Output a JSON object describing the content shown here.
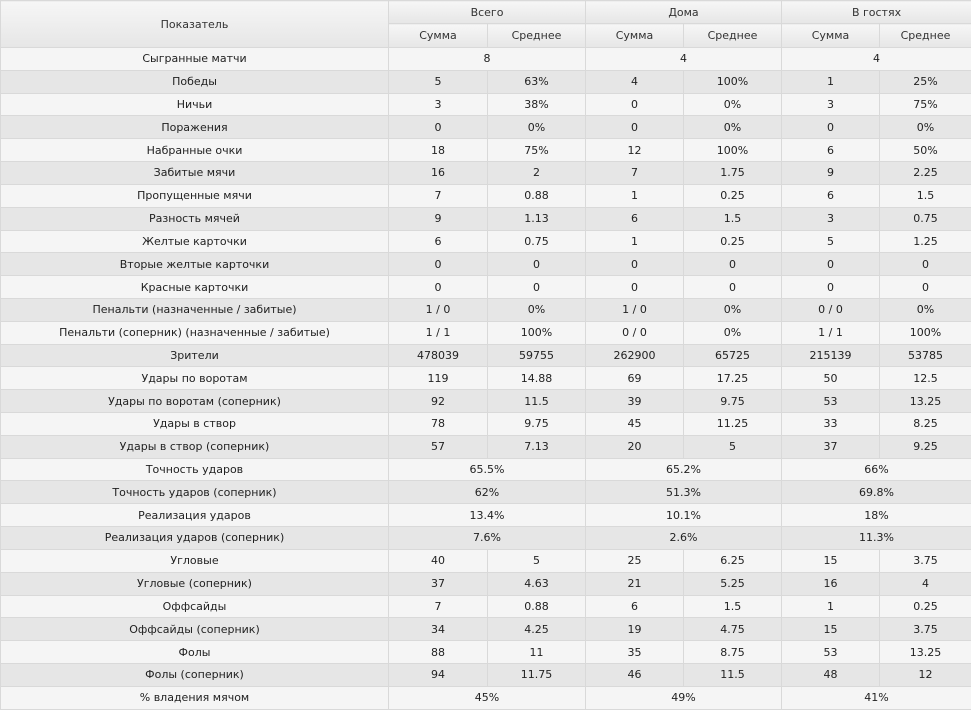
{
  "header": {
    "indicator": "Показатель",
    "groups": [
      "Всего",
      "Дома",
      "В гостях"
    ],
    "sub": [
      "Сумма",
      "Среднее"
    ]
  },
  "rows": [
    {
      "label": "Сыгранные матчи",
      "merged": [
        "8",
        "4",
        "4"
      ]
    },
    {
      "label": "Победы",
      "cells": [
        "5",
        "63%",
        "4",
        "100%",
        "1",
        "25%"
      ]
    },
    {
      "label": "Ничьи",
      "cells": [
        "3",
        "38%",
        "0",
        "0%",
        "3",
        "75%"
      ]
    },
    {
      "label": "Поражения",
      "cells": [
        "0",
        "0%",
        "0",
        "0%",
        "0",
        "0%"
      ]
    },
    {
      "label": "Набранные очки",
      "cells": [
        "18",
        "75%",
        "12",
        "100%",
        "6",
        "50%"
      ]
    },
    {
      "label": "Забитые мячи",
      "cells": [
        "16",
        "2",
        "7",
        "1.75",
        "9",
        "2.25"
      ]
    },
    {
      "label": "Пропущенные мячи",
      "cells": [
        "7",
        "0.88",
        "1",
        "0.25",
        "6",
        "1.5"
      ]
    },
    {
      "label": "Разность мячей",
      "cells": [
        "9",
        "1.13",
        "6",
        "1.5",
        "3",
        "0.75"
      ]
    },
    {
      "label": "Желтые карточки",
      "cells": [
        "6",
        "0.75",
        "1",
        "0.25",
        "5",
        "1.25"
      ]
    },
    {
      "label": "Вторые желтые карточки",
      "cells": [
        "0",
        "0",
        "0",
        "0",
        "0",
        "0"
      ]
    },
    {
      "label": "Красные карточки",
      "cells": [
        "0",
        "0",
        "0",
        "0",
        "0",
        "0"
      ]
    },
    {
      "label": "Пенальти (назначенные / забитые)",
      "cells": [
        "1 / 0",
        "0%",
        "1 / 0",
        "0%",
        "0 / 0",
        "0%"
      ]
    },
    {
      "label": "Пенальти (соперник) (назначенные / забитые)",
      "cells": [
        "1 / 1",
        "100%",
        "0 / 0",
        "0%",
        "1 / 1",
        "100%"
      ]
    },
    {
      "label": "Зрители",
      "cells": [
        "478039",
        "59755",
        "262900",
        "65725",
        "215139",
        "53785"
      ]
    },
    {
      "label": "Удары по воротам",
      "cells": [
        "119",
        "14.88",
        "69",
        "17.25",
        "50",
        "12.5"
      ]
    },
    {
      "label": "Удары по воротам (соперник)",
      "cells": [
        "92",
        "11.5",
        "39",
        "9.75",
        "53",
        "13.25"
      ]
    },
    {
      "label": "Удары в створ",
      "cells": [
        "78",
        "9.75",
        "45",
        "11.25",
        "33",
        "8.25"
      ]
    },
    {
      "label": "Удары в створ (соперник)",
      "cells": [
        "57",
        "7.13",
        "20",
        "5",
        "37",
        "9.25"
      ]
    },
    {
      "label": "Точность ударов",
      "merged": [
        "65.5%",
        "65.2%",
        "66%"
      ]
    },
    {
      "label": "Точность ударов (соперник)",
      "merged": [
        "62%",
        "51.3%",
        "69.8%"
      ]
    },
    {
      "label": "Реализация ударов",
      "merged": [
        "13.4%",
        "10.1%",
        "18%"
      ]
    },
    {
      "label": "Реализация ударов (соперник)",
      "merged": [
        "7.6%",
        "2.6%",
        "11.3%"
      ]
    },
    {
      "label": "Угловые",
      "cells": [
        "40",
        "5",
        "25",
        "6.25",
        "15",
        "3.75"
      ]
    },
    {
      "label": "Угловые (соперник)",
      "cells": [
        "37",
        "4.63",
        "21",
        "5.25",
        "16",
        "4"
      ]
    },
    {
      "label": "Оффсайды",
      "cells": [
        "7",
        "0.88",
        "6",
        "1.5",
        "1",
        "0.25"
      ]
    },
    {
      "label": "Оффсайды (соперник)",
      "cells": [
        "34",
        "4.25",
        "19",
        "4.75",
        "15",
        "3.75"
      ]
    },
    {
      "label": "Фолы",
      "cells": [
        "88",
        "11",
        "35",
        "8.75",
        "53",
        "13.25"
      ]
    },
    {
      "label": "Фолы (соперник)",
      "cells": [
        "94",
        "11.75",
        "46",
        "11.5",
        "48",
        "12"
      ]
    },
    {
      "label": "% владения мячом",
      "merged": [
        "45%",
        "49%",
        "41%"
      ]
    }
  ]
}
